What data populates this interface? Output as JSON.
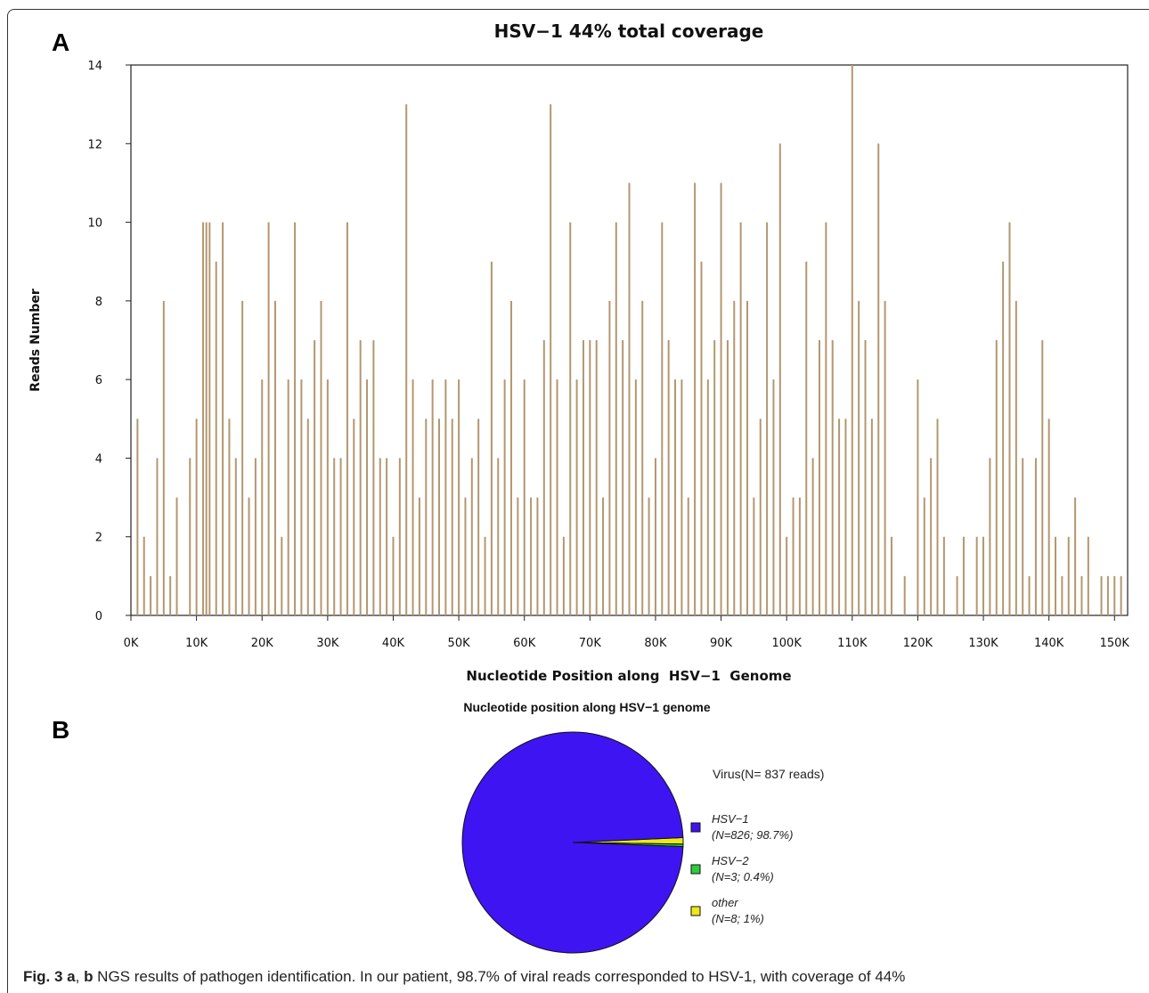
{
  "panels": {
    "a_label": "A",
    "b_label": "B"
  },
  "chart_data": [
    {
      "type": "bar",
      "title": "HSV−1 44% total coverage",
      "xlabel": "Nucleotide Position along  HSV−1  Genome",
      "ylabel": "Reads Number",
      "xlim": [
        0,
        152000
      ],
      "ylim": [
        0,
        14
      ],
      "xticks": [
        "0K",
        "10K",
        "20K",
        "30K",
        "40K",
        "50K",
        "60K",
        "70K",
        "80K",
        "90K",
        "100K",
        "110K",
        "120K",
        "130K",
        "140K",
        "150K"
      ],
      "yticks": [
        "0",
        "2",
        "4",
        "6",
        "8",
        "10",
        "12",
        "14"
      ],
      "bar_color": "#b39770",
      "series": [
        {
          "x": [
            1000,
            2000,
            3000,
            4000,
            5000,
            6000,
            7000,
            9000,
            10000,
            11000,
            11500,
            12000,
            13000,
            14000,
            15000,
            16000,
            17000,
            18000,
            19000,
            20000,
            21000,
            22000,
            23000,
            24000,
            25000,
            26000,
            27000,
            28000,
            29000,
            30000,
            31000,
            32000,
            33000,
            34000,
            35000,
            36000,
            37000,
            38000,
            39000,
            40000,
            41000,
            42000,
            43000,
            44000,
            45000,
            46000,
            47000,
            48000,
            49000,
            50000,
            51000,
            52000,
            53000,
            54000,
            55000,
            56000,
            57000,
            58000,
            59000,
            60000,
            61000,
            62000,
            63000,
            64000,
            65000,
            66000,
            67000,
            68000,
            69000,
            70000,
            71000,
            72000,
            73000,
            74000,
            75000,
            76000,
            77000,
            78000,
            79000,
            80000,
            81000,
            82000,
            83000,
            84000,
            85000,
            86000,
            87000,
            88000,
            89000,
            90000,
            91000,
            92000,
            93000,
            94000,
            95000,
            96000,
            97000,
            98000,
            99000,
            100000,
            101000,
            102000,
            103000,
            104000,
            105000,
            106000,
            107000,
            108000,
            109000,
            110000,
            111000,
            112000,
            113000,
            114000,
            115000,
            116000,
            118000,
            120000,
            121000,
            122000,
            123000,
            124000,
            126000,
            127000,
            129000,
            130000,
            131000,
            132000,
            133000,
            134000,
            135000,
            136000,
            137000,
            138000,
            139000,
            140000,
            141000,
            142000,
            143000,
            144000,
            145000,
            146000,
            148000,
            149000,
            150000,
            151000
          ],
          "y": [
            5,
            2,
            1,
            4,
            8,
            1,
            3,
            4,
            5,
            10,
            10,
            10,
            9,
            10,
            5,
            4,
            8,
            3,
            4,
            6,
            10,
            8,
            2,
            6,
            10,
            6,
            5,
            7,
            8,
            6,
            4,
            4,
            10,
            5,
            7,
            6,
            7,
            4,
            4,
            2,
            4,
            13,
            6,
            3,
            5,
            6,
            5,
            6,
            5,
            6,
            3,
            4,
            5,
            2,
            9,
            4,
            6,
            8,
            3,
            6,
            3,
            3,
            7,
            13,
            6,
            2,
            10,
            6,
            7,
            7,
            7,
            3,
            8,
            10,
            7,
            11,
            6,
            8,
            3,
            4,
            10,
            7,
            6,
            6,
            3,
            11,
            9,
            6,
            7,
            11,
            7,
            8,
            10,
            8,
            3,
            5,
            10,
            6,
            12,
            2,
            3,
            3,
            9,
            4,
            7,
            10,
            7,
            5,
            5,
            14,
            8,
            7,
            5,
            12,
            8,
            2,
            1,
            6,
            3,
            4,
            5,
            2,
            1,
            2,
            2,
            2,
            4,
            7,
            9,
            10,
            8,
            4,
            1,
            4,
            7,
            5,
            2,
            1,
            2,
            3,
            1,
            2,
            1,
            1,
            1,
            1
          ]
        }
      ]
    },
    {
      "type": "pie",
      "title": "Nucleotide position along HSV−1 genome",
      "legend_title": "Virus(N= 837 reads)",
      "legend_position": "right",
      "slices": [
        {
          "name": "HSV−1",
          "detail": "(N=826; 98.7%)",
          "value": 826,
          "color": "#3f14f2"
        },
        {
          "name": "HSV−2",
          "detail": "(N=3; 0.4%)",
          "value": 3,
          "color": "#2ecb3a"
        },
        {
          "name": "other",
          "detail": "(N=8; 1%)",
          "value": 8,
          "color": "#ece81a"
        }
      ]
    }
  ],
  "caption": {
    "label": "Fig. 3",
    "parts": "a",
    "sep": ", ",
    "parts2": "b",
    "text": " NGS results of pathogen identification. In our patient, 98.7% of viral reads corresponded to HSV-1, with coverage of 44%"
  }
}
